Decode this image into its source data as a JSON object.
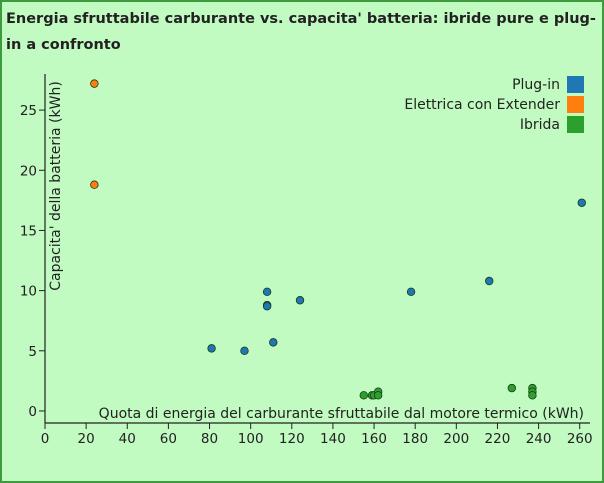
{
  "chart_data": {
    "type": "scatter",
    "title": "Energia sfruttabile carburante vs. capacita' batteria: ibride pure e plug-in a confronto",
    "xlabel": "Quota di energia del carburante sfruttabile dal motore termico (kWh)",
    "ylabel": "Capacita' della batteria (kWh)",
    "xlim": [
      0,
      265
    ],
    "ylim": [
      -1,
      28
    ],
    "xticks": [
      0,
      20,
      40,
      60,
      80,
      100,
      120,
      140,
      160,
      180,
      200,
      220,
      240,
      260
    ],
    "yticks": [
      0,
      5,
      10,
      15,
      20,
      25
    ],
    "grid": false,
    "legend_position": "top-right",
    "series": [
      {
        "name": "Plug-in",
        "color": "#1f77b4",
        "points": [
          [
            81,
            5.2
          ],
          [
            97,
            5.0
          ],
          [
            108,
            9.9
          ],
          [
            108,
            8.8
          ],
          [
            108,
            8.7
          ],
          [
            111,
            5.7
          ],
          [
            124,
            9.2
          ],
          [
            178,
            9.9
          ],
          [
            216,
            10.8
          ],
          [
            261,
            17.3
          ]
        ]
      },
      {
        "name": "Elettrica con Extender",
        "color": "#ff7f0e",
        "points": [
          [
            24,
            27.2
          ],
          [
            24,
            18.8
          ]
        ]
      },
      {
        "name": "Ibrida",
        "color": "#2ca02c",
        "points": [
          [
            155,
            1.3
          ],
          [
            159,
            1.3
          ],
          [
            160,
            1.3
          ],
          [
            162,
            1.6
          ],
          [
            162,
            1.3
          ],
          [
            227,
            1.9
          ],
          [
            237,
            1.9
          ],
          [
            237,
            1.6
          ],
          [
            237,
            1.3
          ]
        ]
      }
    ]
  }
}
